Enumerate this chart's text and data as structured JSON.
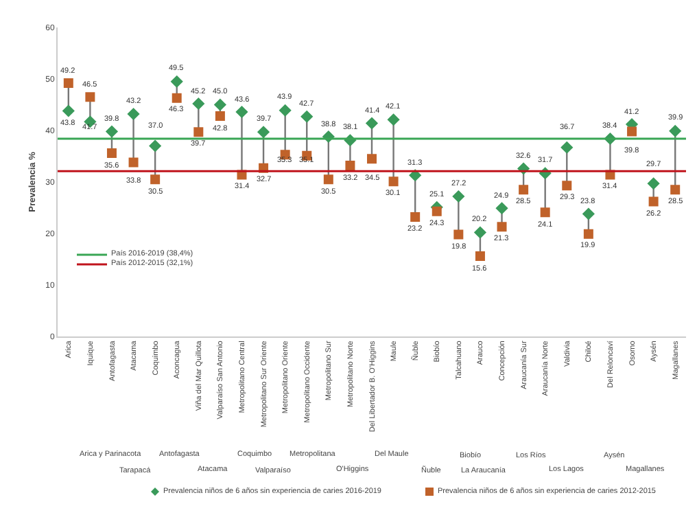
{
  "chart_data": {
    "type": "scatter",
    "ylabel": "Prevalencia %",
    "categories": [
      "Arica",
      "Iquique",
      "Antofagasta",
      "Atacama",
      "Coquimbo",
      "Aconcagua",
      "Viña del Mar Quillota",
      "Valparaíso San Antonio",
      "Metropolitano Central",
      "Metropolitano Sur Oriente",
      "Metropolitano Oriente",
      "Metropolitano Occidente",
      "Metropolitano Sur",
      "Metropolitano Norte",
      "Del Libertador B. O'Higgins",
      "Maule",
      "Ñuble",
      "Biobío",
      "Talcahuano",
      "Arauco",
      "Concepción",
      "Araucanía Sur",
      "Araucanía Norte",
      "Valdivia",
      "Chiloé",
      "Del Reloncaví",
      "Osorno",
      "Aysén",
      "Magallanes"
    ],
    "series": [
      {
        "name": "Prevalencia niños de 6 años sin experiencia de caries 2016-2019",
        "color": "#3a9a5a",
        "marker": "diamond",
        "values": [
          43.8,
          41.7,
          39.8,
          43.2,
          37.0,
          49.5,
          45.2,
          45.0,
          43.6,
          39.7,
          43.9,
          42.7,
          38.8,
          38.1,
          41.4,
          42.1,
          31.3,
          25.1,
          27.2,
          20.2,
          24.9,
          32.6,
          31.7,
          36.7,
          23.8,
          38.4,
          41.2,
          29.7,
          39.9
        ],
        "value_labels": [
          "43.8",
          "41.7",
          "39.8",
          "43.2",
          "37.0",
          "49.5",
          "45.2",
          "45.0",
          "43.6",
          "39.7",
          "43.9",
          "42.7",
          "38.8",
          "38.1",
          "41.4",
          "42.1",
          "31.3",
          "25.1",
          "27.2",
          "20.2",
          "24.9",
          "32.6",
          "31.7",
          "36.7",
          "23.8",
          "38.4",
          "41.2",
          "29.7",
          "39.9"
        ]
      },
      {
        "name": "Prevalencia niños de 6 años sin experiencia de caries 2012-2015",
        "color": "#c0622a",
        "marker": "square",
        "values": [
          49.2,
          46.5,
          35.6,
          33.8,
          30.5,
          46.3,
          39.7,
          42.8,
          31.4,
          32.7,
          35.3,
          35.1,
          30.5,
          33.2,
          34.5,
          30.1,
          23.2,
          24.3,
          19.8,
          15.6,
          21.3,
          28.5,
          24.1,
          29.3,
          19.9,
          31.4,
          39.8,
          26.2,
          28.5
        ],
        "value_labels": [
          "49.2",
          "46.5",
          "35.6",
          "33.8",
          "30.5",
          "46.3",
          "39.7",
          "42.8",
          "31.4",
          "32.7",
          "35.3",
          "35.1",
          "30.5",
          "33.2",
          "34.5",
          "30.1",
          "23.2",
          "24.3",
          "19.8",
          "15.6",
          "21.3",
          "28.5",
          "24.1",
          "29.3",
          "19.9",
          "31.4",
          "39.8",
          "26.2",
          "28.5"
        ]
      }
    ],
    "ylim": [
      0,
      60
    ],
    "yticks": [
      0,
      10,
      20,
      30,
      40,
      50,
      60
    ],
    "grid": false,
    "legend": "bottom",
    "ref_lines": [
      {
        "axis": "y",
        "value": 38.4,
        "label": "País 2016-2019 (38,4%)",
        "color": "#3aa655"
      },
      {
        "axis": "y",
        "value": 32.1,
        "label": "País 2012-2015 (32,1%)",
        "color": "#c0141c"
      }
    ],
    "annotations": [
      "Arica y Parinacota",
      "Tarapacá",
      "Antofagasta",
      "Atacama",
      "Coquimbo",
      "Valparaíso",
      "Metropolitana",
      "O'Higgins",
      "Del Maule",
      "Ñuble",
      "Biobío",
      "La Araucanía",
      "Los Ríos",
      "Los Lagos",
      "Aysén",
      "Magallanes"
    ]
  }
}
